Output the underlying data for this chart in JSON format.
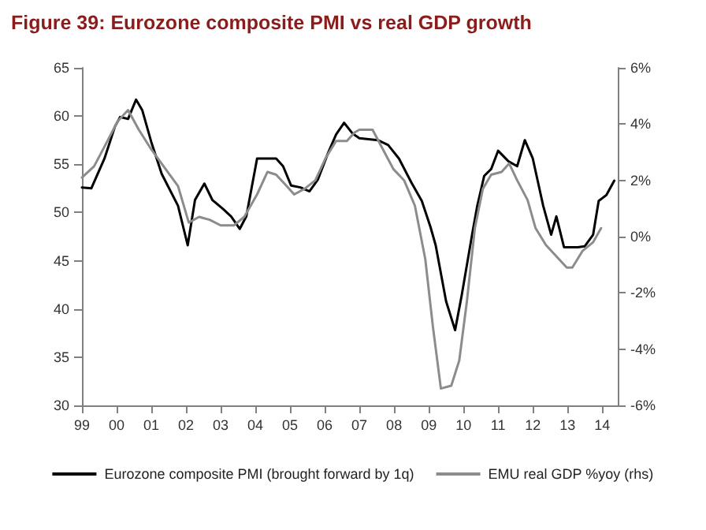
{
  "chart_data": {
    "type": "line",
    "title": "Figure 39: Eurozone composite PMI vs real GDP growth",
    "xlim": [
      1999,
      2014.45
    ],
    "xticks": [
      {
        "value": 1999,
        "label": "99"
      },
      {
        "value": 2000,
        "label": "00"
      },
      {
        "value": 2001,
        "label": "01"
      },
      {
        "value": 2002,
        "label": "02"
      },
      {
        "value": 2003,
        "label": "03"
      },
      {
        "value": 2004,
        "label": "04"
      },
      {
        "value": 2005,
        "label": "05"
      },
      {
        "value": 2006,
        "label": "06"
      },
      {
        "value": 2007,
        "label": "07"
      },
      {
        "value": 2008,
        "label": "08"
      },
      {
        "value": 2009,
        "label": "09"
      },
      {
        "value": 2010,
        "label": "10"
      },
      {
        "value": 2011,
        "label": "11"
      },
      {
        "value": 2012,
        "label": "12"
      },
      {
        "value": 2013,
        "label": "13"
      },
      {
        "value": 2014,
        "label": "14"
      }
    ],
    "ylim": [
      30,
      65
    ],
    "yticks": [
      30,
      35,
      40,
      45,
      50,
      55,
      60,
      65
    ],
    "y2lim": [
      -6,
      6
    ],
    "y2ticks": [
      {
        "value": -6,
        "label": "-6%"
      },
      {
        "value": -4,
        "label": "-4%"
      },
      {
        "value": -2,
        "label": "-2%"
      },
      {
        "value": 0,
        "label": "0%"
      },
      {
        "value": 2,
        "label": "2%"
      },
      {
        "value": 4,
        "label": "4%"
      },
      {
        "value": 6,
        "label": "6%"
      }
    ],
    "grid": false,
    "legend": "bottom",
    "marker": "none",
    "line_style": "solid",
    "series": [
      {
        "name": "Eurozone composite PMI (brought forward by 1q)",
        "color": "#000000",
        "x": [
          1999.0,
          1999.27,
          1999.65,
          1999.95,
          2000.1,
          2000.33,
          2000.56,
          2000.74,
          2001.0,
          2001.3,
          2001.77,
          2002.05,
          2002.26,
          2002.53,
          2002.76,
          2003.06,
          2003.3,
          2003.55,
          2003.74,
          2004.05,
          2004.6,
          2004.8,
          2005.03,
          2005.3,
          2005.56,
          2005.8,
          2006.1,
          2006.33,
          2006.56,
          2006.8,
          2007.0,
          2007.53,
          2007.83,
          2008.14,
          2008.5,
          2008.8,
          2009.05,
          2009.2,
          2009.5,
          2009.76,
          2009.95,
          2010.26,
          2010.4,
          2010.6,
          2010.8,
          2011.0,
          2011.3,
          2011.55,
          2011.77,
          2012.0,
          2012.3,
          2012.53,
          2012.68,
          2012.9,
          2013.3,
          2013.5,
          2013.74,
          2013.9,
          2014.12,
          2014.35
        ],
        "values": [
          52.6,
          52.5,
          55.6,
          58.9,
          59.9,
          59.7,
          61.7,
          60.6,
          57.3,
          54.0,
          50.7,
          46.6,
          51.3,
          53.0,
          51.3,
          50.4,
          49.6,
          48.3,
          49.6,
          55.6,
          55.6,
          54.8,
          52.8,
          52.6,
          52.2,
          53.4,
          56.2,
          58.1,
          59.3,
          58.2,
          57.7,
          57.5,
          57.0,
          55.6,
          53.1,
          51.2,
          48.5,
          46.6,
          40.8,
          37.8,
          41.4,
          47.9,
          50.7,
          53.8,
          54.5,
          56.4,
          55.3,
          54.8,
          57.5,
          55.6,
          50.7,
          47.7,
          49.6,
          46.4,
          46.4,
          46.5,
          47.7,
          51.2,
          51.8,
          53.3
        ]
      },
      {
        "name": "EMU real GDP %yoy (rhs)",
        "color": "#8c8c8c",
        "axis": "y2",
        "x": [
          1999.0,
          1999.35,
          1999.65,
          2000.03,
          2000.33,
          2000.64,
          2001.0,
          2001.47,
          2001.77,
          2002.08,
          2002.38,
          2002.68,
          2003.0,
          2003.38,
          2003.68,
          2004.05,
          2004.35,
          2004.6,
          2004.9,
          2005.12,
          2005.42,
          2005.73,
          2006.03,
          2006.33,
          2006.64,
          2006.86,
          2007.0,
          2007.38,
          2007.68,
          2007.98,
          2008.29,
          2008.6,
          2008.9,
          2009.12,
          2009.35,
          2009.65,
          2009.88,
          2010.1,
          2010.33,
          2010.56,
          2010.8,
          2011.1,
          2011.32,
          2011.55,
          2011.85,
          2012.08,
          2012.38,
          2012.68,
          2012.98,
          2013.14,
          2013.44,
          2013.74,
          2013.97
        ],
        "values": [
          2.1,
          2.5,
          3.2,
          4.1,
          4.5,
          3.8,
          3.1,
          2.3,
          1.8,
          0.5,
          0.7,
          0.6,
          0.4,
          0.4,
          0.7,
          1.5,
          2.3,
          2.2,
          1.8,
          1.5,
          1.7,
          2.0,
          2.8,
          3.4,
          3.4,
          3.7,
          3.8,
          3.8,
          3.1,
          2.4,
          2.0,
          1.1,
          -0.8,
          -3.2,
          -5.4,
          -5.3,
          -4.4,
          -2.3,
          0.3,
          1.7,
          2.2,
          2.3,
          2.6,
          2.0,
          1.3,
          0.3,
          -0.3,
          -0.7,
          -1.1,
          -1.1,
          -0.5,
          -0.2,
          0.3
        ]
      }
    ]
  }
}
